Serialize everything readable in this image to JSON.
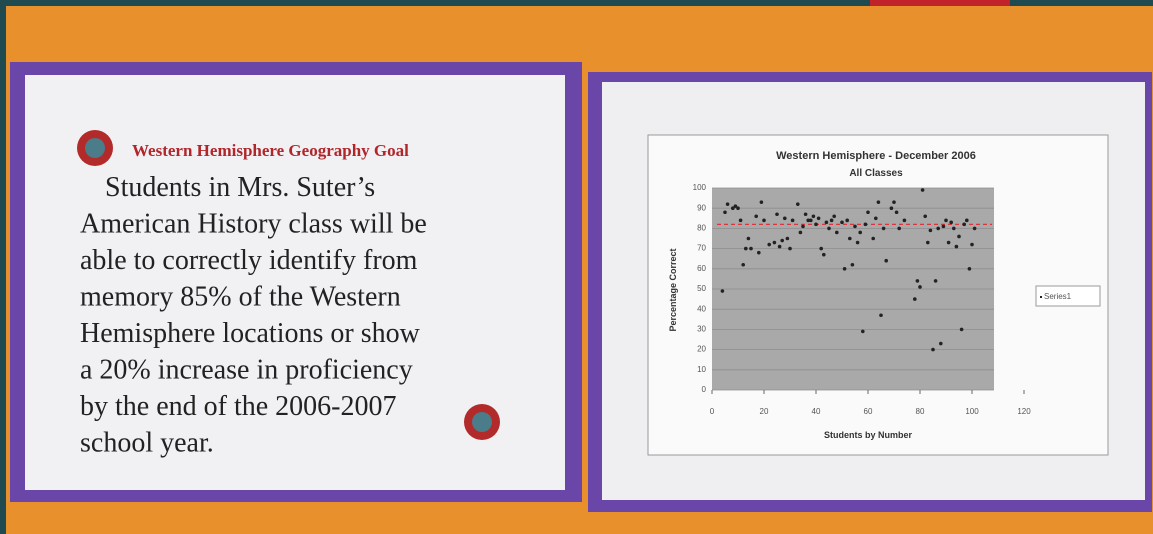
{
  "poster": {
    "heading": "Western Hemisphere  Geography Goal",
    "body_lines": [
      "Students in Mrs. Suter’s",
      "American History class will be",
      "able to correctly identify from",
      "memory 85% of the Western",
      "Hemisphere locations or show",
      "a 20% increase in proficiency",
      "by the end of the 2006-2007",
      "school year."
    ]
  },
  "chart_data": {
    "type": "scatter",
    "title": "Western Hemisphere - December 2006",
    "subtitle": "All Classes",
    "x_label": "Students by Number",
    "y_label": "Percentage Correct",
    "x": [
      4,
      5,
      6,
      8,
      9,
      10,
      11,
      12,
      13,
      14,
      15,
      17,
      18,
      19,
      20,
      22,
      24,
      25,
      26,
      27,
      28,
      29,
      30,
      31,
      33,
      34,
      35,
      36,
      37,
      38,
      39,
      40,
      41,
      42,
      43,
      44,
      45,
      46,
      47,
      48,
      50,
      51,
      52,
      53,
      54,
      55,
      56,
      57,
      58,
      59,
      60,
      62,
      63,
      64,
      65,
      66,
      67,
      69,
      70,
      71,
      72,
      74,
      78,
      79,
      80,
      81,
      82,
      83,
      84,
      85,
      86,
      87,
      88,
      89,
      90,
      91,
      92,
      93,
      94,
      95,
      96,
      97,
      98,
      99,
      100,
      101
    ],
    "series": [
      {
        "name": "Series1",
        "color": "#222222",
        "values": [
          49,
          88,
          92,
          90,
          91,
          90,
          84,
          62,
          70,
          75,
          70,
          86,
          68,
          93,
          84,
          72,
          73,
          87,
          71,
          74,
          85,
          75,
          70,
          84,
          92,
          78,
          81,
          87,
          84,
          84,
          86,
          82,
          85,
          70,
          67,
          83,
          80,
          84,
          86,
          78,
          83,
          60,
          84,
          75,
          62,
          81,
          73,
          78,
          29,
          82,
          88,
          75,
          85,
          93,
          37,
          80,
          64,
          90,
          93,
          88,
          80,
          84,
          45,
          54,
          51,
          99,
          86,
          73,
          79,
          20,
          54,
          80,
          23,
          81,
          84,
          73,
          83,
          80,
          71,
          76,
          30,
          82,
          84,
          60,
          72,
          80
        ]
      }
    ],
    "target_line": {
      "value": 82,
      "color": "#d9363e"
    },
    "xlim": [
      0,
      120
    ],
    "xticks": [
      0,
      20,
      40,
      60,
      80,
      100,
      120
    ],
    "ylim": [
      0,
      100
    ],
    "yticks": [
      0,
      10,
      20,
      30,
      40,
      50,
      60,
      70,
      80,
      90,
      100
    ],
    "grid": true,
    "legend": "right"
  }
}
